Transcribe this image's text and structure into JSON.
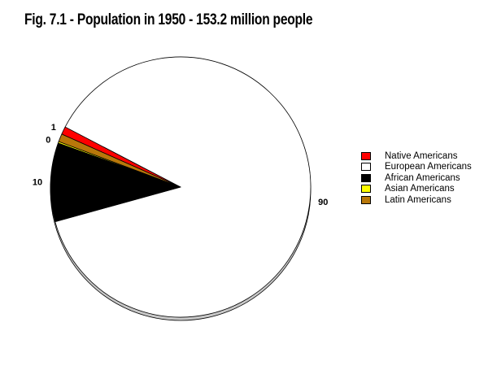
{
  "chart_data": {
    "type": "pie",
    "title": "Fig. 7.1 - Population in 1950 - 153.2 million people",
    "slices": [
      {
        "name": "Native Americans",
        "value": 1,
        "label": "1",
        "color": "#ff0000"
      },
      {
        "name": "European Americans",
        "value": 90,
        "label": "90",
        "color": "#ffffff"
      },
      {
        "name": "African Americans",
        "value": 10,
        "label": "10",
        "color": "#000000"
      },
      {
        "name": "Asian Americans",
        "value": 0.2,
        "label": "0",
        "color": "#ffff00"
      },
      {
        "name": "Latin Americans",
        "value": 1,
        "label": "",
        "color": "#b8770a"
      }
    ],
    "legend_position": "right"
  }
}
